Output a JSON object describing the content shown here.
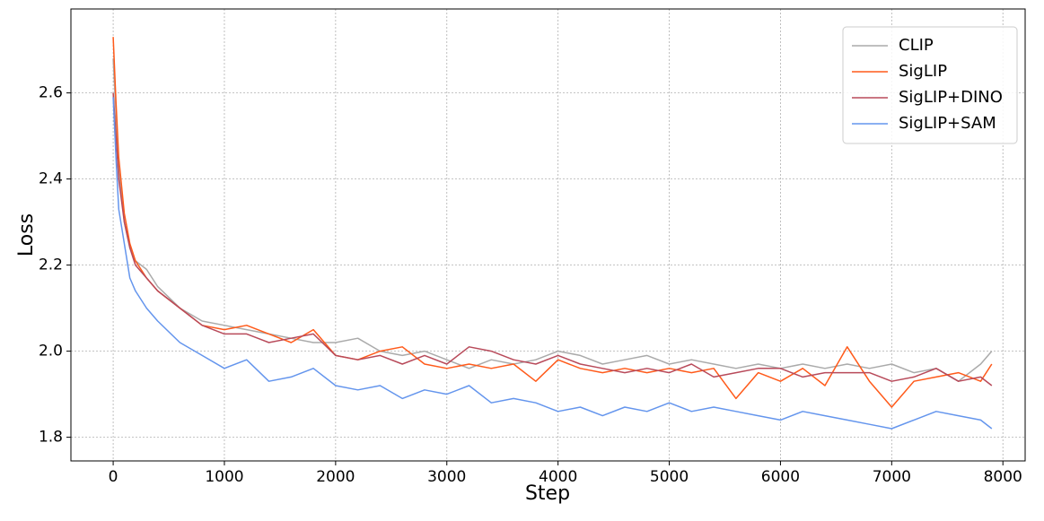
{
  "chart_data": {
    "type": "line",
    "xlabel": "Step",
    "ylabel": "Loss",
    "x": [
      0,
      25,
      50,
      100,
      150,
      200,
      300,
      400,
      600,
      800,
      1000,
      1200,
      1400,
      1600,
      1800,
      2000,
      2200,
      2400,
      2600,
      2800,
      3000,
      3200,
      3400,
      3600,
      3800,
      4000,
      4200,
      4400,
      4600,
      4800,
      5000,
      5200,
      5400,
      5600,
      5800,
      6000,
      6200,
      6400,
      6600,
      6800,
      7000,
      7200,
      7400,
      7600,
      7800,
      7900
    ],
    "series": [
      {
        "name": "CLIP",
        "color": "#aaaaaa",
        "values": [
          2.68,
          2.55,
          2.42,
          2.3,
          2.24,
          2.21,
          2.19,
          2.15,
          2.1,
          2.07,
          2.06,
          2.05,
          2.04,
          2.03,
          2.02,
          2.02,
          2.03,
          2.0,
          1.99,
          2.0,
          1.98,
          1.96,
          1.98,
          1.97,
          1.98,
          2.0,
          1.99,
          1.97,
          1.98,
          1.99,
          1.97,
          1.98,
          1.97,
          1.96,
          1.97,
          1.96,
          1.97,
          1.96,
          1.97,
          1.96,
          1.97,
          1.95,
          1.96,
          1.93,
          1.97,
          2.0
        ]
      },
      {
        "name": "SigLIP",
        "color": "#ff5a1a",
        "values": [
          2.73,
          2.58,
          2.45,
          2.32,
          2.25,
          2.21,
          2.17,
          2.14,
          2.1,
          2.06,
          2.05,
          2.06,
          2.04,
          2.02,
          2.05,
          1.99,
          1.98,
          2.0,
          2.01,
          1.97,
          1.96,
          1.97,
          1.96,
          1.97,
          1.93,
          1.98,
          1.96,
          1.95,
          1.96,
          1.95,
          1.96,
          1.95,
          1.96,
          1.89,
          1.95,
          1.93,
          1.96,
          1.92,
          2.01,
          1.93,
          1.87,
          1.93,
          1.94,
          1.95,
          1.93,
          1.97
        ]
      },
      {
        "name": "SigLIP+DINO",
        "color": "#b84a5a",
        "values": [
          2.6,
          2.5,
          2.4,
          2.3,
          2.24,
          2.2,
          2.17,
          2.14,
          2.1,
          2.06,
          2.04,
          2.04,
          2.02,
          2.03,
          2.04,
          1.99,
          1.98,
          1.99,
          1.97,
          1.99,
          1.97,
          2.01,
          2.0,
          1.98,
          1.97,
          1.99,
          1.97,
          1.96,
          1.95,
          1.96,
          1.95,
          1.97,
          1.94,
          1.95,
          1.96,
          1.96,
          1.94,
          1.95,
          1.95,
          1.95,
          1.93,
          1.94,
          1.96,
          1.93,
          1.94,
          1.92
        ]
      },
      {
        "name": "SigLIP+SAM",
        "color": "#6495ed",
        "values": [
          2.59,
          2.45,
          2.33,
          2.25,
          2.17,
          2.14,
          2.1,
          2.07,
          2.02,
          1.99,
          1.96,
          1.98,
          1.93,
          1.94,
          1.96,
          1.92,
          1.91,
          1.92,
          1.89,
          1.91,
          1.9,
          1.92,
          1.88,
          1.89,
          1.88,
          1.86,
          1.87,
          1.85,
          1.87,
          1.86,
          1.88,
          1.86,
          1.87,
          1.86,
          1.85,
          1.84,
          1.86,
          1.85,
          1.84,
          1.83,
          1.82,
          1.84,
          1.86,
          1.85,
          1.84,
          1.82
        ]
      }
    ],
    "xlim": [
      -380,
      8200
    ],
    "ylim": [
      1.745,
      2.795
    ],
    "xticks": [
      0,
      1000,
      2000,
      3000,
      4000,
      5000,
      6000,
      7000,
      8000
    ],
    "yticks": [
      1.8,
      {
        "value": 2,
        "label": "2.0"
      },
      2.2,
      2.4,
      2.6
    ],
    "grid": true,
    "legend": "upper-right"
  }
}
